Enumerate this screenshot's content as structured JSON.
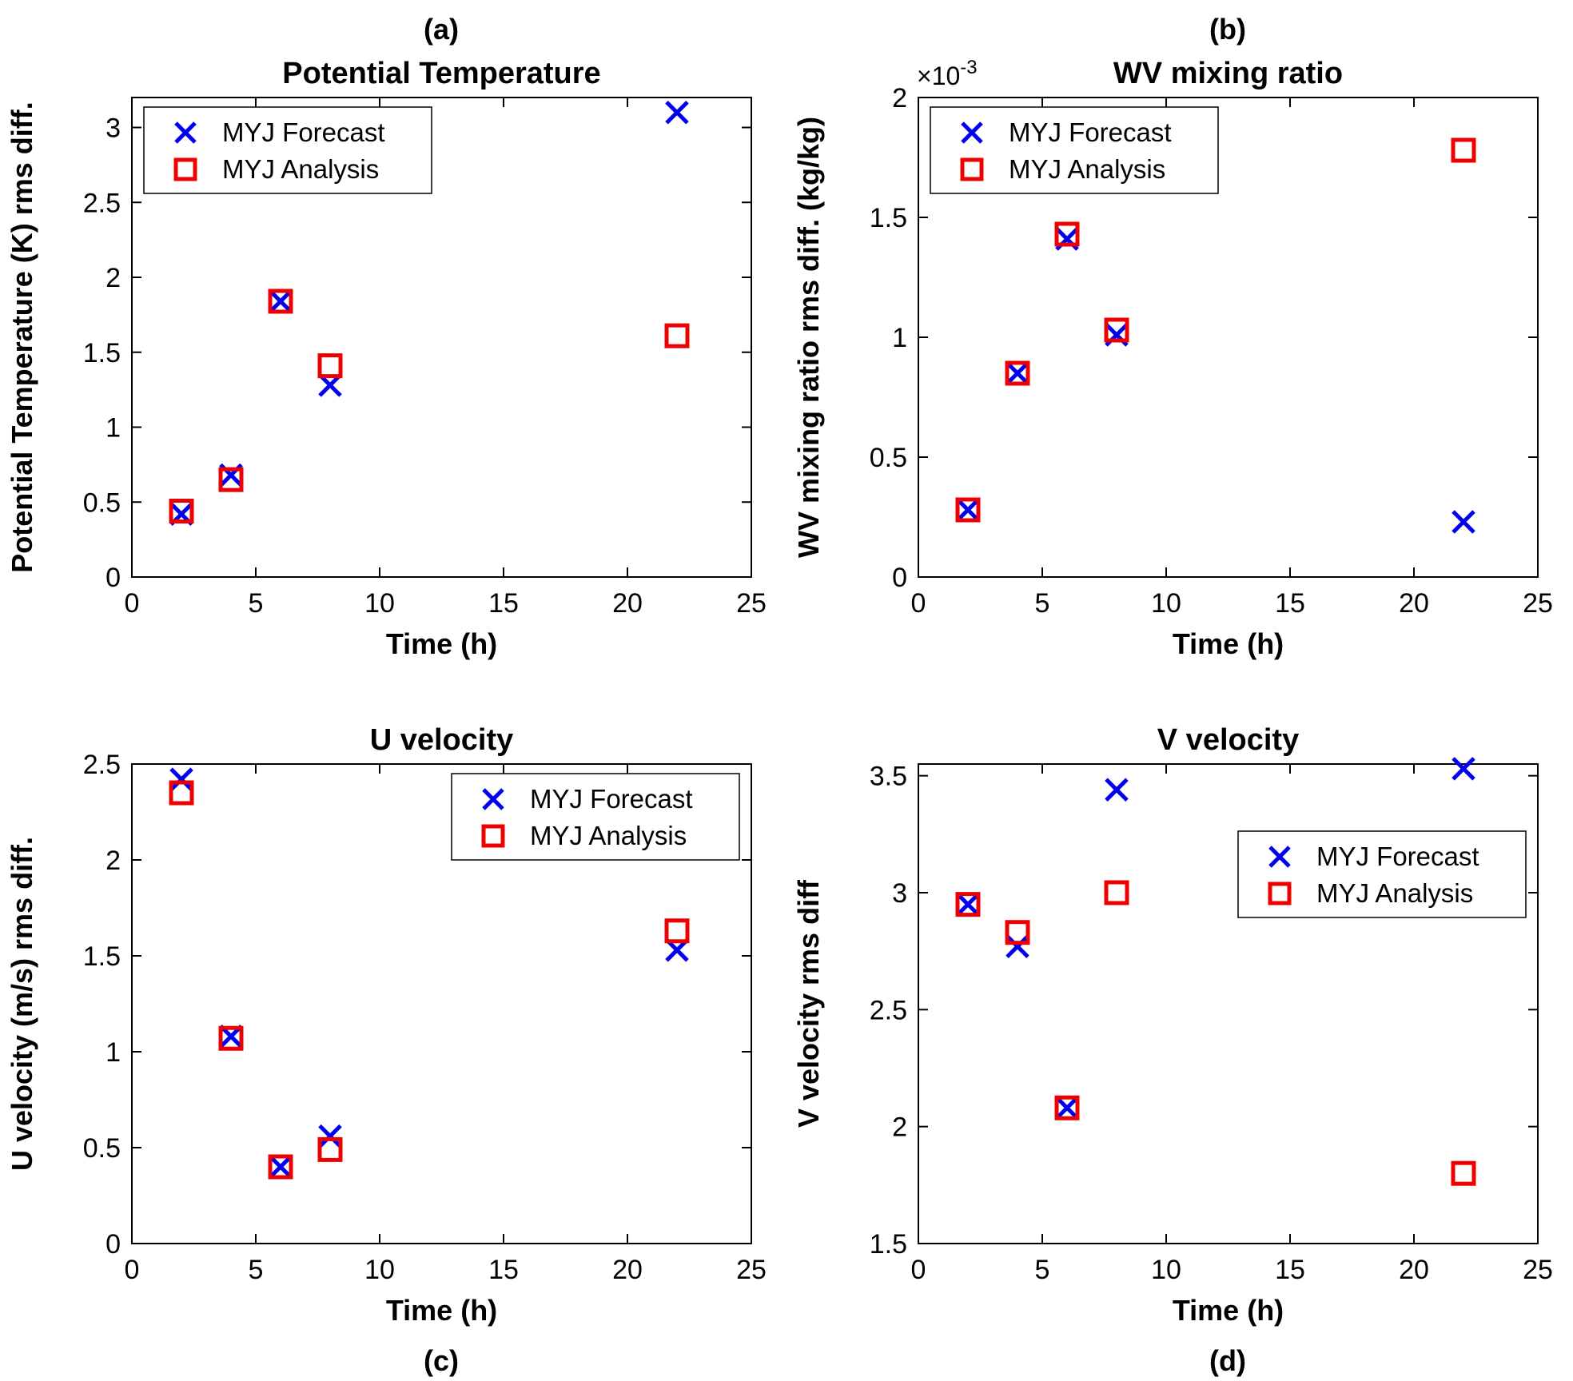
{
  "figure": {
    "background": "#ffffff",
    "axis_color": "#000000",
    "legend_labels": [
      "MYJ Forecast",
      "MYJ Analysis"
    ],
    "series_styles": [
      {
        "name": "MYJ Forecast",
        "marker": "x",
        "color": "#0000EE"
      },
      {
        "name": "MYJ Analysis",
        "marker": "square",
        "color": "#EE0000"
      }
    ]
  },
  "chart_data": [
    {
      "type": "scatter",
      "panel_label": "(a)",
      "title": "Potential Temperature",
      "xlabel": "Time (h)",
      "ylabel": "Potential Temperature (K) rms diff.",
      "xlim": [
        0,
        25
      ],
      "ylim": [
        0,
        3.2
      ],
      "grid": false,
      "xticks": [
        0,
        5,
        10,
        15,
        20,
        25
      ],
      "xtick_labels": [
        "0",
        "5",
        "10",
        "15",
        "20",
        "25"
      ],
      "yticks": [
        0,
        0.5,
        1,
        1.5,
        2,
        2.5,
        3
      ],
      "ytick_labels": [
        "0",
        "0.5",
        "1",
        "1.5",
        "2",
        "2.5",
        "3"
      ],
      "legend_position": "top-left",
      "x": [
        2,
        4,
        6,
        8,
        22
      ],
      "series": [
        {
          "name": "MYJ Forecast",
          "values": [
            0.42,
            0.68,
            1.84,
            1.28,
            3.1
          ]
        },
        {
          "name": "MYJ Analysis",
          "values": [
            0.44,
            0.65,
            1.84,
            1.41,
            1.61
          ]
        }
      ]
    },
    {
      "type": "scatter",
      "panel_label": "(b)",
      "title": "WV mixing ratio",
      "xlabel": "Time (h)",
      "ylabel": "WV mixing ratio rms diff. (kg/kg)",
      "xlim": [
        0,
        25
      ],
      "ylim": [
        0,
        0.002
      ],
      "grid": false,
      "y_multiplier": {
        "base": "×10",
        "exponent": "-3"
      },
      "xticks": [
        0,
        5,
        10,
        15,
        20,
        25
      ],
      "xtick_labels": [
        "0",
        "5",
        "10",
        "15",
        "20",
        "25"
      ],
      "yticks": [
        0,
        0.0005,
        0.001,
        0.0015,
        0.002
      ],
      "ytick_labels": [
        "0",
        "0.5",
        "1",
        "1.5",
        "2"
      ],
      "legend_position": "top-left",
      "x": [
        2,
        4,
        6,
        8,
        22
      ],
      "series": [
        {
          "name": "MYJ Forecast",
          "values": [
            0.00028,
            0.00085,
            0.00141,
            0.00101,
            0.00023
          ]
        },
        {
          "name": "MYJ Analysis",
          "values": [
            0.00028,
            0.00085,
            0.00143,
            0.00103,
            0.00178
          ]
        }
      ]
    },
    {
      "type": "scatter",
      "panel_label": "(c)",
      "title": "U velocity",
      "xlabel": "Time (h)",
      "ylabel": "U velocity (m/s) rms diff.",
      "xlim": [
        0,
        25
      ],
      "ylim": [
        0,
        2.5
      ],
      "grid": false,
      "xticks": [
        0,
        5,
        10,
        15,
        20,
        25
      ],
      "xtick_labels": [
        "0",
        "5",
        "10",
        "15",
        "20",
        "25"
      ],
      "yticks": [
        0,
        0.5,
        1,
        1.5,
        2,
        2.5
      ],
      "ytick_labels": [
        "0",
        "0.5",
        "1",
        "1.5",
        "2",
        "2.5"
      ],
      "legend_position": "top-right",
      "x": [
        2,
        4,
        6,
        8,
        22
      ],
      "series": [
        {
          "name": "MYJ Forecast",
          "values": [
            2.42,
            1.08,
            0.4,
            0.56,
            1.53
          ]
        },
        {
          "name": "MYJ Analysis",
          "values": [
            2.35,
            1.07,
            0.4,
            0.49,
            1.63
          ]
        }
      ]
    },
    {
      "type": "scatter",
      "panel_label": "(d)",
      "title": "V velocity",
      "xlabel": "Time (h)",
      "ylabel": "V velocity rms diff",
      "xlim": [
        0,
        25
      ],
      "ylim": [
        1.5,
        3.55
      ],
      "grid": false,
      "xticks": [
        0,
        5,
        10,
        15,
        20,
        25
      ],
      "xtick_labels": [
        "0",
        "5",
        "10",
        "15",
        "20",
        "25"
      ],
      "yticks": [
        1.5,
        2,
        2.5,
        3,
        3.5
      ],
      "ytick_labels": [
        "1.5",
        "2",
        "2.5",
        "3",
        "3.5"
      ],
      "legend_position": "mid-right",
      "x": [
        2,
        4,
        6,
        8,
        22
      ],
      "series": [
        {
          "name": "MYJ Forecast",
          "values": [
            2.95,
            2.77,
            2.08,
            3.44,
            3.53
          ]
        },
        {
          "name": "MYJ Analysis",
          "values": [
            2.95,
            2.83,
            2.08,
            3.0,
            1.8
          ]
        }
      ]
    }
  ]
}
